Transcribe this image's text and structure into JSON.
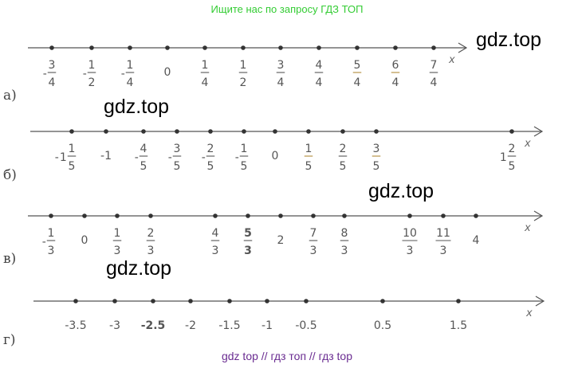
{
  "header_text": "Ищите нас по запросу ГДЗ ТОП",
  "footer_text": "gdz top  //  гдз топ  //  гдз top",
  "watermark_text": "gdz.top",
  "colors": {
    "header": "#33cc33",
    "footer": "#6a2c91",
    "axis": "#555555",
    "highlight": "#b08a3a",
    "point": "#333333"
  },
  "axis_letter": "x",
  "lines": [
    {
      "part": "а)",
      "labels": [
        {
          "sign": "-",
          "num": "3",
          "den": "4"
        },
        {
          "sign": "-",
          "num": "1",
          "den": "2"
        },
        {
          "sign": "-",
          "num": "1",
          "den": "4"
        },
        {
          "text": "0"
        },
        {
          "num": "1",
          "den": "4"
        },
        {
          "num": "1",
          "den": "2"
        },
        {
          "num": "3",
          "den": "4"
        },
        {
          "num": "4",
          "den": "4"
        },
        {
          "num": "5",
          "den": "4",
          "hl": true
        },
        {
          "num": "6",
          "den": "4",
          "hl": true
        },
        {
          "num": "7",
          "den": "4"
        }
      ]
    },
    {
      "part": "б)",
      "labels": [
        {
          "sign": "-",
          "whole": "1",
          "num": "1",
          "den": "5"
        },
        {
          "text": "-1"
        },
        {
          "sign": "-",
          "num": "4",
          "den": "5"
        },
        {
          "sign": "-",
          "num": "3",
          "den": "5"
        },
        {
          "sign": "-",
          "num": "2",
          "den": "5"
        },
        {
          "sign": "-",
          "num": "1",
          "den": "5"
        },
        {
          "text": "0"
        },
        {
          "num": "1",
          "den": "5",
          "hl": true
        },
        {
          "num": "2",
          "den": "5"
        },
        {
          "num": "3",
          "den": "5",
          "hl": true
        },
        {
          "whole": "1",
          "num": "2",
          "den": "5"
        }
      ]
    },
    {
      "part": "в)",
      "labels": [
        {
          "sign": "-",
          "num": "1",
          "den": "3"
        },
        {
          "text": "0"
        },
        {
          "num": "1",
          "den": "3"
        },
        {
          "num": "2",
          "den": "3"
        },
        {
          "num": "4",
          "den": "3"
        },
        {
          "num": "5",
          "den": "3",
          "bold": true
        },
        {
          "text": "2"
        },
        {
          "num": "7",
          "den": "3"
        },
        {
          "num": "8",
          "den": "3"
        },
        {
          "num": "10",
          "den": "3"
        },
        {
          "num": "11",
          "den": "3"
        },
        {
          "text": "4"
        }
      ]
    },
    {
      "part": "г)",
      "labels": [
        {
          "text": "-3.5"
        },
        {
          "text": "-3"
        },
        {
          "text": "-2.5",
          "bold": true
        },
        {
          "text": "-2"
        },
        {
          "text": "-1.5"
        },
        {
          "text": "-1"
        },
        {
          "text": "-0.5"
        },
        {
          "text": "0.5"
        },
        {
          "text": "1.5"
        }
      ]
    }
  ]
}
